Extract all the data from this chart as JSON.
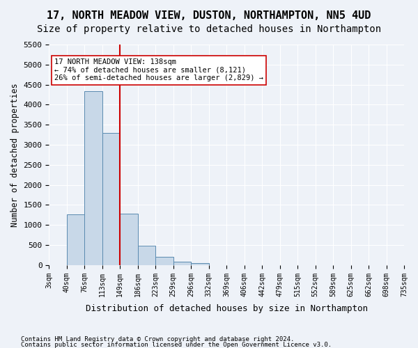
{
  "title": "17, NORTH MEADOW VIEW, DUSTON, NORTHAMPTON, NN5 4UD",
  "subtitle": "Size of property relative to detached houses in Northampton",
  "xlabel": "Distribution of detached houses by size in Northampton",
  "ylabel": "Number of detached properties",
  "footer_line1": "Contains HM Land Registry data © Crown copyright and database right 2024.",
  "footer_line2": "Contains public sector information licensed under the Open Government Licence v3.0.",
  "bin_edges": [
    "3sqm",
    "40sqm",
    "76sqm",
    "113sqm",
    "149sqm",
    "186sqm",
    "223sqm",
    "259sqm",
    "296sqm",
    "332sqm",
    "369sqm",
    "406sqm",
    "442sqm",
    "479sqm",
    "515sqm",
    "552sqm",
    "589sqm",
    "625sqm",
    "662sqm",
    "698sqm",
    "735sqm"
  ],
  "bar_values": [
    0,
    1260,
    4330,
    3300,
    1280,
    490,
    210,
    80,
    55,
    0,
    0,
    0,
    0,
    0,
    0,
    0,
    0,
    0,
    0,
    0
  ],
  "bar_color": "#c8d8e8",
  "bar_edge_color": "#5a8ab0",
  "red_line_x": 4,
  "annotation_line1": "17 NORTH MEADOW VIEW: 138sqm",
  "annotation_line2": "← 74% of detached houses are smaller (8,121)",
  "annotation_line3": "26% of semi-detached houses are larger (2,829) →",
  "red_line_color": "#cc0000",
  "annotation_box_facecolor": "#ffffff",
  "annotation_box_edgecolor": "#cc0000",
  "ylim": [
    0,
    5500
  ],
  "yticks": [
    0,
    500,
    1000,
    1500,
    2000,
    2500,
    3000,
    3500,
    4000,
    4500,
    5000,
    5500
  ],
  "bg_color": "#eef2f8",
  "grid_color": "#ffffff",
  "title_fontsize": 11,
  "subtitle_fontsize": 10
}
